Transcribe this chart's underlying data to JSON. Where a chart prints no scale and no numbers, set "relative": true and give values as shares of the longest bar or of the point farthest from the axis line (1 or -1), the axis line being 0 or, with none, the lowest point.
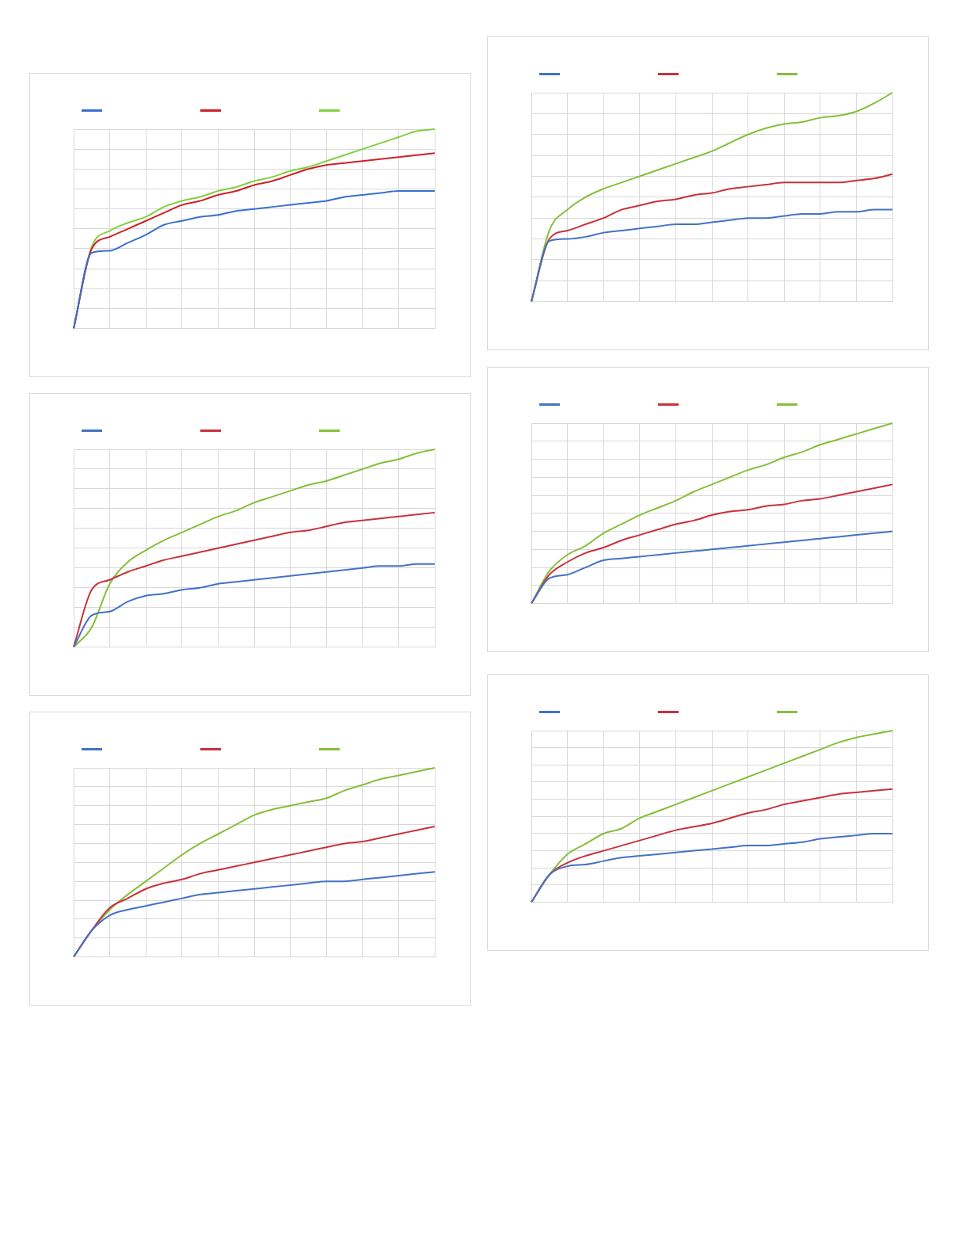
{
  "chart_data": [
    {
      "type": "line",
      "relative": true,
      "grid": true,
      "categories": [
        null,
        null,
        null,
        null,
        null,
        null,
        null,
        null,
        null,
        null,
        null,
        null,
        null,
        null,
        null,
        null,
        null,
        null,
        null,
        null,
        null
      ],
      "series": [
        {
          "color": "#3a6fcf",
          "values": [
            0,
            0.38,
            0.39,
            0.43,
            0.47,
            0.52,
            0.54,
            0.56,
            0.57,
            0.59,
            0.6,
            0.61,
            0.62,
            0.63,
            0.64,
            0.66,
            0.67,
            0.68,
            0.69,
            0.69,
            0.69
          ]
        },
        {
          "color": "#d0202a",
          "values": [
            0,
            0.4,
            0.46,
            0.5,
            0.54,
            0.58,
            0.62,
            0.64,
            0.67,
            0.69,
            0.72,
            0.74,
            0.77,
            0.8,
            0.82,
            0.83,
            0.84,
            0.85,
            0.86,
            0.87,
            0.88
          ]
        },
        {
          "color": "#80d040",
          "values": [
            0,
            0.41,
            0.49,
            0.53,
            0.56,
            0.61,
            0.64,
            0.66,
            0.69,
            0.71,
            0.74,
            0.76,
            0.79,
            0.81,
            0.84,
            0.87,
            0.9,
            0.93,
            0.96,
            0.99,
            1
          ]
        }
      ]
    },
    {
      "type": "line",
      "relative": true,
      "grid": true,
      "categories": [
        null,
        null,
        null,
        null,
        null,
        null,
        null,
        null,
        null,
        null,
        null,
        null,
        null,
        null,
        null,
        null,
        null,
        null,
        null,
        null,
        null
      ],
      "series": [
        {
          "color": "#4472c4",
          "values": [
            0,
            0.29,
            0.3,
            0.31,
            0.33,
            0.34,
            0.35,
            0.36,
            0.37,
            0.37,
            0.38,
            0.39,
            0.4,
            0.4,
            0.41,
            0.42,
            0.42,
            0.43,
            0.43,
            0.44,
            0.44
          ]
        },
        {
          "color": "#c8323c",
          "values": [
            0,
            0.3,
            0.34,
            0.37,
            0.4,
            0.44,
            0.46,
            0.48,
            0.49,
            0.51,
            0.52,
            0.54,
            0.55,
            0.56,
            0.57,
            0.57,
            0.57,
            0.57,
            0.58,
            0.59,
            0.61
          ]
        },
        {
          "color": "#86bf3a",
          "values": [
            0,
            0.34,
            0.44,
            0.5,
            0.54,
            0.57,
            0.6,
            0.63,
            0.66,
            0.69,
            0.72,
            0.76,
            0.8,
            0.83,
            0.85,
            0.86,
            0.88,
            0.89,
            0.91,
            0.95,
            1
          ]
        }
      ]
    },
    {
      "type": "line",
      "relative": true,
      "grid": true,
      "categories": [
        null,
        null,
        null,
        null,
        null,
        null,
        null,
        null,
        null,
        null,
        null,
        null,
        null,
        null,
        null,
        null,
        null,
        null,
        null,
        null,
        null
      ],
      "series": [
        {
          "color": "#4472c4",
          "values": [
            0,
            0.16,
            0.18,
            0.23,
            0.26,
            0.27,
            0.29,
            0.3,
            0.32,
            0.33,
            0.34,
            0.35,
            0.36,
            0.37,
            0.38,
            0.39,
            0.4,
            0.41,
            0.41,
            0.42,
            0.42
          ]
        },
        {
          "color": "#c8323c",
          "values": [
            0,
            0.29,
            0.34,
            0.38,
            0.41,
            0.44,
            0.46,
            0.48,
            0.5,
            0.52,
            0.54,
            0.56,
            0.58,
            0.59,
            0.61,
            0.63,
            0.64,
            0.65,
            0.66,
            0.67,
            0.68
          ]
        },
        {
          "color": "#86bf3a",
          "values": [
            0,
            0.1,
            0.32,
            0.43,
            0.49,
            0.54,
            0.58,
            0.62,
            0.66,
            0.69,
            0.73,
            0.76,
            0.79,
            0.82,
            0.84,
            0.87,
            0.9,
            0.93,
            0.95,
            0.98,
            1
          ]
        }
      ]
    },
    {
      "type": "line",
      "relative": true,
      "grid": true,
      "categories": [
        null,
        null,
        null,
        null,
        null,
        null,
        null,
        null,
        null,
        null,
        null,
        null,
        null,
        null,
        null,
        null,
        null,
        null,
        null,
        null,
        null
      ],
      "series": [
        {
          "color": "#4472c4",
          "values": [
            0,
            0.14,
            0.16,
            0.2,
            0.24,
            0.25,
            0.26,
            0.27,
            0.28,
            0.29,
            0.3,
            0.31,
            0.32,
            0.33,
            0.34,
            0.35,
            0.36,
            0.37,
            0.38,
            0.39,
            0.4
          ]
        },
        {
          "color": "#c8323c",
          "values": [
            0,
            0.16,
            0.23,
            0.28,
            0.31,
            0.35,
            0.38,
            0.41,
            0.44,
            0.46,
            0.49,
            0.51,
            0.52,
            0.54,
            0.55,
            0.57,
            0.58,
            0.6,
            0.62,
            0.64,
            0.66
          ]
        },
        {
          "color": "#86bf3a",
          "values": [
            0,
            0.18,
            0.27,
            0.32,
            0.39,
            0.44,
            0.49,
            0.53,
            0.57,
            0.62,
            0.66,
            0.7,
            0.74,
            0.77,
            0.81,
            0.84,
            0.88,
            0.91,
            0.94,
            0.97,
            1
          ]
        }
      ]
    },
    {
      "type": "line",
      "relative": true,
      "grid": true,
      "categories": [
        null,
        null,
        null,
        null,
        null,
        null,
        null,
        null,
        null,
        null,
        null,
        null,
        null,
        null,
        null,
        null,
        null,
        null,
        null,
        null,
        null
      ],
      "series": [
        {
          "color": "#4472c4",
          "values": [
            0,
            0.14,
            0.22,
            0.25,
            0.27,
            0.29,
            0.31,
            0.33,
            0.34,
            0.35,
            0.36,
            0.37,
            0.38,
            0.39,
            0.4,
            0.4,
            0.41,
            0.42,
            0.43,
            0.44,
            0.45
          ]
        },
        {
          "color": "#c8323c",
          "values": [
            0,
            0.14,
            0.26,
            0.31,
            0.36,
            0.39,
            0.41,
            0.44,
            0.46,
            0.48,
            0.5,
            0.52,
            0.54,
            0.56,
            0.58,
            0.6,
            0.61,
            0.63,
            0.65,
            0.67,
            0.69
          ]
        },
        {
          "color": "#86bf3a",
          "values": [
            0,
            0.14,
            0.25,
            0.33,
            0.4,
            0.47,
            0.54,
            0.6,
            0.65,
            0.7,
            0.75,
            0.78,
            0.8,
            0.82,
            0.84,
            0.88,
            0.91,
            0.94,
            0.96,
            0.98,
            1
          ]
        }
      ]
    },
    {
      "type": "line",
      "relative": true,
      "grid": true,
      "categories": [
        null,
        null,
        null,
        null,
        null,
        null,
        null,
        null,
        null,
        null,
        null,
        null,
        null,
        null,
        null,
        null,
        null,
        null,
        null,
        null,
        null
      ],
      "series": [
        {
          "color": "#4472c4",
          "values": [
            0,
            0.16,
            0.21,
            0.22,
            0.24,
            0.26,
            0.27,
            0.28,
            0.29,
            0.3,
            0.31,
            0.32,
            0.33,
            0.33,
            0.34,
            0.35,
            0.37,
            0.38,
            0.39,
            0.4,
            0.4
          ]
        },
        {
          "color": "#c8323c",
          "values": [
            0,
            0.16,
            0.23,
            0.27,
            0.3,
            0.33,
            0.36,
            0.39,
            0.42,
            0.44,
            0.46,
            0.49,
            0.52,
            0.54,
            0.57,
            0.59,
            0.61,
            0.63,
            0.64,
            0.65,
            0.66
          ]
        },
        {
          "color": "#86bf3a",
          "values": [
            0,
            0.16,
            0.28,
            0.34,
            0.4,
            0.43,
            0.49,
            0.53,
            0.57,
            0.61,
            0.65,
            0.69,
            0.73,
            0.77,
            0.81,
            0.85,
            0.89,
            0.93,
            0.96,
            0.98,
            1
          ]
        }
      ]
    }
  ]
}
